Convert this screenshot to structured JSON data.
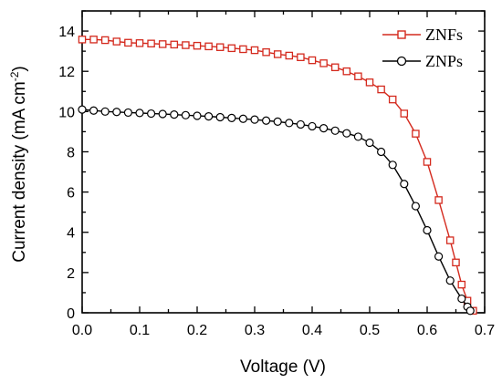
{
  "chart_data": {
    "type": "line",
    "x_axis": {
      "label": "Voltage (V)",
      "min": 0.0,
      "max": 0.7,
      "ticks": [
        0.0,
        0.1,
        0.2,
        0.3,
        0.4,
        0.5,
        0.6,
        0.7
      ],
      "tick_labels": [
        "0.0",
        "0.1",
        "0.2",
        "0.3",
        "0.4",
        "0.5",
        "0.6",
        "0.7"
      ]
    },
    "y_axis": {
      "label_main": "Current density (mA cm",
      "label_superscript": "-2",
      "label_end": ")",
      "min": 0,
      "max": 15,
      "ticks": [
        0,
        2,
        4,
        6,
        8,
        10,
        12,
        14
      ],
      "tick_labels": [
        "0",
        "2",
        "4",
        "6",
        "8",
        "10",
        "12",
        "14"
      ]
    },
    "grid": false,
    "legend_position": "top-right",
    "series": [
      {
        "name": "ZNFs",
        "color": "#d42a1e",
        "marker": "square",
        "x": [
          0.0,
          0.02,
          0.04,
          0.06,
          0.08,
          0.1,
          0.12,
          0.14,
          0.16,
          0.18,
          0.2,
          0.22,
          0.24,
          0.26,
          0.28,
          0.3,
          0.32,
          0.34,
          0.36,
          0.38,
          0.4,
          0.42,
          0.44,
          0.46,
          0.48,
          0.5,
          0.52,
          0.54,
          0.56,
          0.58,
          0.6,
          0.62,
          0.64,
          0.65,
          0.66,
          0.67,
          0.68
        ],
        "y": [
          13.58,
          13.58,
          13.55,
          13.48,
          13.42,
          13.4,
          13.38,
          13.35,
          13.33,
          13.3,
          13.27,
          13.24,
          13.2,
          13.15,
          13.1,
          13.05,
          12.95,
          12.85,
          12.78,
          12.7,
          12.55,
          12.4,
          12.2,
          12.0,
          11.75,
          11.45,
          11.1,
          10.6,
          9.9,
          8.9,
          7.5,
          5.6,
          3.6,
          2.5,
          1.4,
          0.6,
          0.1
        ]
      },
      {
        "name": "ZNPs",
        "color": "#000000",
        "marker": "circle",
        "x": [
          0.0,
          0.02,
          0.04,
          0.06,
          0.08,
          0.1,
          0.12,
          0.14,
          0.16,
          0.18,
          0.2,
          0.22,
          0.24,
          0.26,
          0.28,
          0.3,
          0.32,
          0.34,
          0.36,
          0.38,
          0.4,
          0.42,
          0.44,
          0.46,
          0.48,
          0.5,
          0.52,
          0.54,
          0.56,
          0.58,
          0.6,
          0.62,
          0.64,
          0.66,
          0.67,
          0.675
        ],
        "y": [
          10.1,
          10.05,
          10.0,
          9.98,
          9.95,
          9.93,
          9.9,
          9.88,
          9.85,
          9.82,
          9.79,
          9.76,
          9.72,
          9.68,
          9.64,
          9.6,
          9.55,
          9.5,
          9.43,
          9.36,
          9.27,
          9.17,
          9.05,
          8.92,
          8.75,
          8.45,
          8.0,
          7.35,
          6.4,
          5.3,
          4.1,
          2.8,
          1.6,
          0.7,
          0.3,
          0.1
        ]
      }
    ]
  }
}
